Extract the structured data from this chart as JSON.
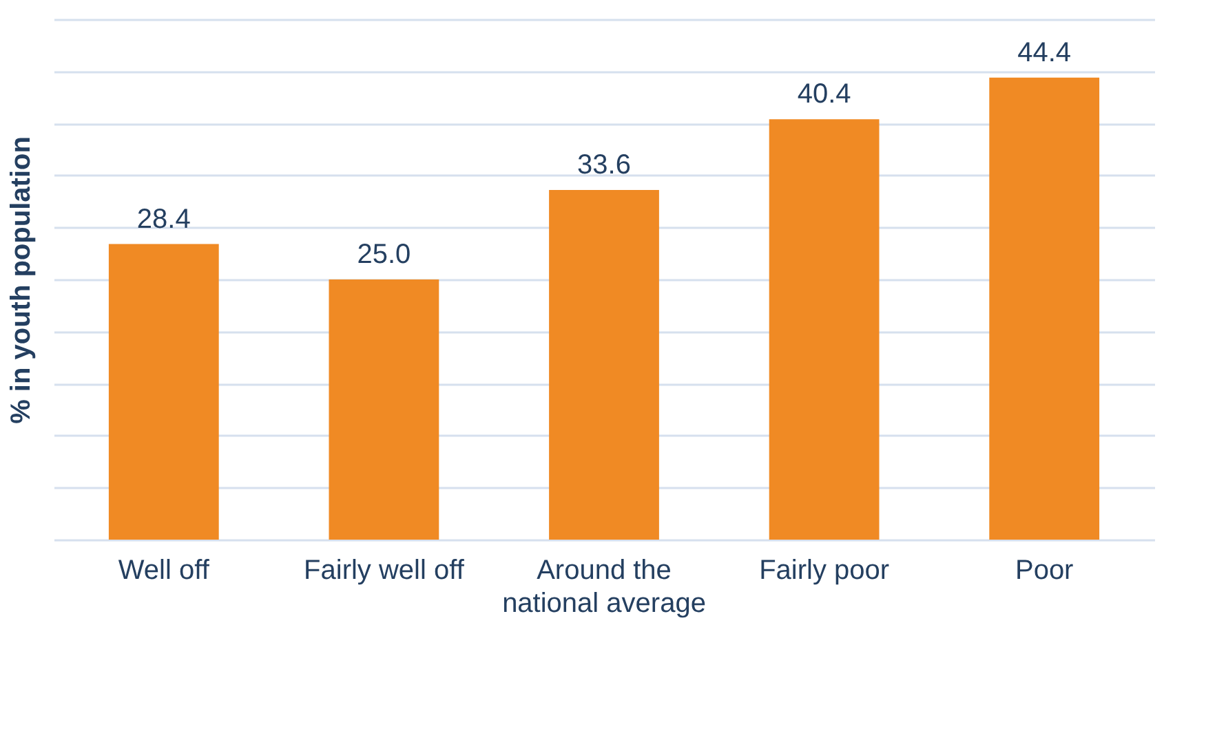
{
  "chart_data": {
    "type": "bar",
    "ylabel": "% in youth population",
    "categories": [
      "Well off",
      "Fairly well off",
      "Around the national average",
      "Fairly poor",
      "Poor"
    ],
    "values": [
      28.4,
      25.0,
      33.6,
      40.4,
      44.4
    ],
    "value_labels": [
      "28.4",
      "25.0",
      "33.6",
      "40.4",
      "44.4"
    ],
    "color": "#f08a24",
    "ylim": [
      0,
      50
    ],
    "yticks": [
      {
        "value": 0,
        "label": null
      },
      {
        "value": 5,
        "label": null
      },
      {
        "value": 10,
        "label": null
      },
      {
        "value": 15,
        "label": null
      },
      {
        "value": 20,
        "label": null
      },
      {
        "value": 25,
        "label": null
      },
      {
        "value": 30,
        "label": null
      },
      {
        "value": 35,
        "label": null
      },
      {
        "value": 40,
        "label": null
      },
      {
        "value": 45,
        "label": null
      },
      {
        "value": 50,
        "label": null
      }
    ],
    "grid": "y",
    "tick_labels": "x"
  }
}
